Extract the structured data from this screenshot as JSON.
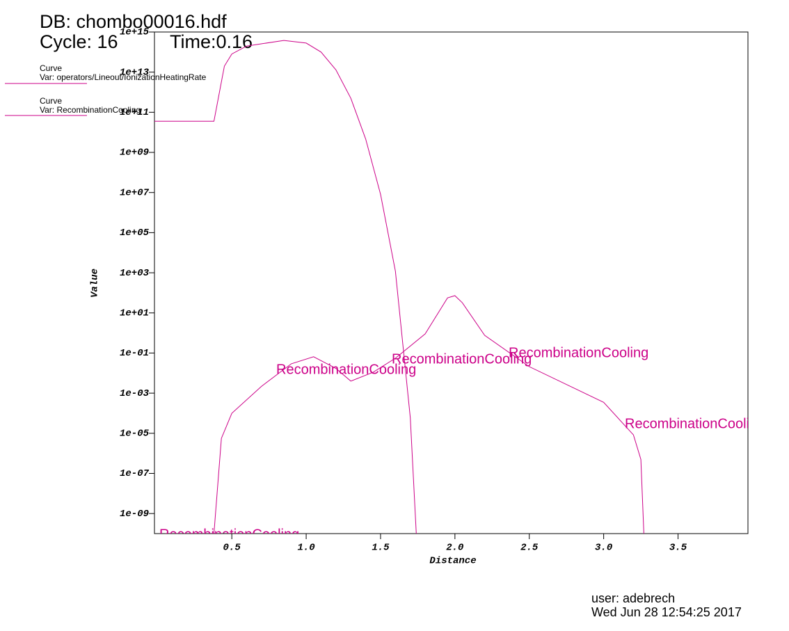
{
  "header": {
    "title": "DB: chombo00016.hdf",
    "cycle": "Cycle: 16",
    "time": "Time:0.16"
  },
  "footer": {
    "user": "user: adebrech",
    "date": "Wed Jun 28 12:54:25 2017"
  },
  "chart_data": {
    "type": "line",
    "xlabel": "Distance",
    "ylabel": "Value",
    "log_y": true,
    "xlim": [
      -0.02,
      3.97
    ],
    "ylim": [
      1e-10,
      1000000000000000.0
    ],
    "xticks": [
      0.5,
      {
        "value": 1,
        "label": "1.0"
      },
      1.5,
      {
        "value": 2,
        "label": "2.0"
      },
      2.5,
      {
        "value": 3,
        "label": "3.0"
      },
      3.5
    ],
    "yticks": [
      {
        "value": 1000000000000000.0,
        "label": "1e+15"
      },
      {
        "value": 10000000000000.0,
        "label": "1e+13"
      },
      {
        "value": 100000000000.0,
        "label": "1e+11"
      },
      {
        "value": 1000000000.0,
        "label": "1e+09"
      },
      {
        "value": 10000000.0,
        "label": "1e+07"
      },
      {
        "value": 100000.0,
        "label": "1e+05"
      },
      {
        "value": 1000.0,
        "label": "1e+03"
      },
      {
        "value": 10.0,
        "label": "1e+01"
      },
      {
        "value": 0.1,
        "label": "1e-01"
      },
      {
        "value": 0.001,
        "label": "1e-03"
      },
      {
        "value": 1e-05,
        "label": "1e-05"
      },
      {
        "value": 1e-07,
        "label": "1e-07"
      },
      {
        "value": 1e-09,
        "label": "1e-09"
      }
    ],
    "series": [
      {
        "legend_title": "Curve",
        "name": "Var: operators/Lineout/IonizationHeatingRate",
        "color": "#cc0088",
        "x": [
          -0.02,
          0.38,
          0.45,
          0.5,
          0.6,
          0.85,
          1.0,
          1.1,
          1.2,
          1.3,
          1.4,
          1.5,
          1.6,
          1.7,
          1.74
        ],
        "values": [
          36000000000.0,
          36000000000.0,
          20000000000000.0,
          80000000000000.0,
          200000000000000.0,
          380000000000000.0,
          280000000000000.0,
          100000000000000.0,
          13000000000000.0,
          500000000000.0,
          4600000000.0,
          8000000.0,
          1200.0,
          6e-05,
          1e-10
        ]
      },
      {
        "legend_title": "Curve",
        "name": "Var: RecombinationCooling",
        "color": "#cc0088",
        "curve_label": "RecombinationCooling",
        "x": [
          0.38,
          0.43,
          0.5,
          0.7,
          0.9,
          1.05,
          1.2,
          1.3,
          1.45,
          1.6,
          1.8,
          1.95,
          2.0,
          2.05,
          2.2,
          2.5,
          3.0,
          3.2,
          3.25,
          3.27
        ],
        "values": [
          1e-10,
          5.6e-06,
          0.0001,
          0.0022,
          0.029,
          0.065,
          0.017,
          0.004,
          0.011,
          0.055,
          0.9,
          56,
          72,
          32,
          0.76,
          0.021,
          0.00035,
          8.3e-06,
          5e-07,
          1e-10
        ]
      }
    ]
  }
}
